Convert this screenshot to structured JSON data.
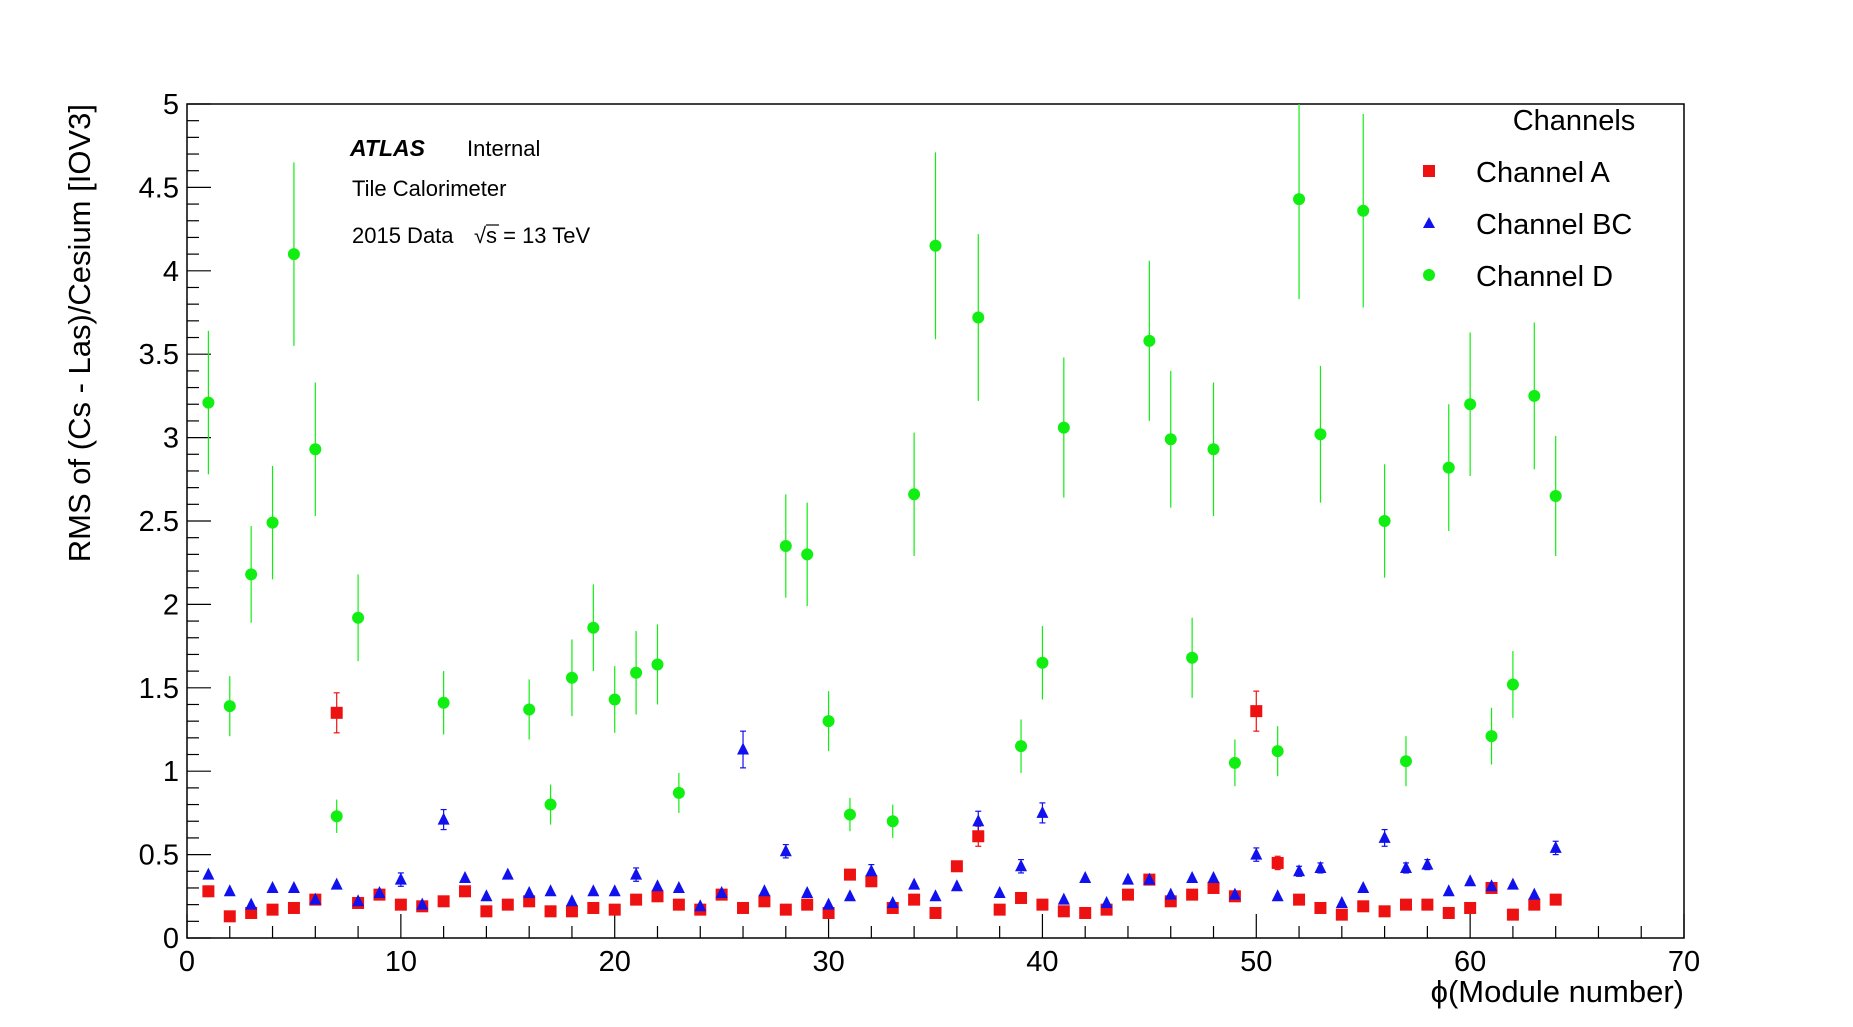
{
  "chart_data": {
    "type": "scatter",
    "xlabel": "ϕ(Module number)",
    "ylabel": "RMS of (Cs - Las)/Cesium  [IOV3]",
    "xlim": [
      0,
      70
    ],
    "ylim": [
      0,
      5
    ],
    "x_ticks": [
      "0",
      "10",
      "20",
      "30",
      "40",
      "50",
      "60",
      "70"
    ],
    "y_ticks": [
      "0",
      "0.5",
      "1",
      "1.5",
      "2",
      "2.5",
      "3",
      "3.5",
      "4",
      "4.5",
      "5"
    ],
    "grid": false,
    "legend_placement": "top-right",
    "legend_title": "Channels",
    "annotations": {
      "experiment": "ATLAS",
      "status": "Internal",
      "detector": "Tile Calorimeter",
      "data_prefix": "2015 Data",
      "sqrt_symbol": "√",
      "energy": "s = 13 TeV"
    },
    "series": [
      {
        "name": "Channel A",
        "color": "#ee1111",
        "marker": "square",
        "x": [
          1,
          2,
          3,
          4,
          5,
          6,
          7,
          8,
          9,
          10,
          11,
          12,
          13,
          14,
          15,
          16,
          17,
          18,
          19,
          20,
          21,
          22,
          23,
          24,
          25,
          26,
          27,
          28,
          29,
          30,
          31,
          32,
          33,
          34,
          35,
          36,
          37,
          38,
          39,
          40,
          41,
          42,
          43,
          44,
          45,
          46,
          47,
          48,
          49,
          50,
          51,
          52,
          53,
          54,
          55,
          56,
          57,
          58,
          59,
          60,
          61,
          62,
          63,
          64
        ],
        "y": [
          0.28,
          0.13,
          0.15,
          0.17,
          0.18,
          0.23,
          1.35,
          0.21,
          0.26,
          0.2,
          0.19,
          0.22,
          0.28,
          0.16,
          0.2,
          0.22,
          0.16,
          0.16,
          0.18,
          0.17,
          0.23,
          0.25,
          0.2,
          0.17,
          0.26,
          0.18,
          0.22,
          0.17,
          0.2,
          0.15,
          0.38,
          0.34,
          0.18,
          0.23,
          0.15,
          0.43,
          0.61,
          0.17,
          0.24,
          0.2,
          0.16,
          0.15,
          0.17,
          0.26,
          0.35,
          0.22,
          0.26,
          0.3,
          0.25,
          1.36,
          0.45,
          0.23,
          0.18,
          0.14,
          0.19,
          0.16,
          0.2,
          0.2,
          0.15,
          0.18,
          0.3,
          0.14,
          0.2,
          0.23
        ],
        "err": [
          0,
          0,
          0,
          0,
          0,
          0,
          0.12,
          0,
          0,
          0,
          0,
          0,
          0,
          0,
          0,
          0,
          0,
          0,
          0,
          0,
          0,
          0,
          0,
          0,
          0,
          0,
          0,
          0,
          0,
          0,
          0,
          0,
          0,
          0,
          0,
          0,
          0.06,
          0,
          0,
          0,
          0,
          0,
          0,
          0,
          0,
          0,
          0,
          0,
          0,
          0.12,
          0.04,
          0,
          0,
          0,
          0,
          0,
          0,
          0,
          0,
          0,
          0,
          0,
          0,
          0
        ]
      },
      {
        "name": "Channel BC",
        "color": "#1111ee",
        "marker": "triangle",
        "x": [
          1,
          2,
          3,
          4,
          5,
          6,
          7,
          8,
          9,
          10,
          11,
          12,
          13,
          14,
          15,
          16,
          17,
          18,
          19,
          20,
          21,
          22,
          23,
          24,
          25,
          26,
          27,
          28,
          29,
          30,
          31,
          32,
          33,
          34,
          35,
          36,
          37,
          38,
          39,
          40,
          41,
          42,
          43,
          44,
          45,
          46,
          47,
          48,
          49,
          50,
          51,
          52,
          53,
          54,
          55,
          56,
          57,
          58,
          59,
          60,
          61,
          62,
          63,
          64
        ],
        "y": [
          0.38,
          0.28,
          0.2,
          0.3,
          0.3,
          0.23,
          0.32,
          0.22,
          0.27,
          0.35,
          0.2,
          0.71,
          0.36,
          0.25,
          0.38,
          0.27,
          0.28,
          0.22,
          0.28,
          0.28,
          0.38,
          0.31,
          0.3,
          0.19,
          0.27,
          1.13,
          0.28,
          0.52,
          0.27,
          0.2,
          0.25,
          0.4,
          0.21,
          0.32,
          0.25,
          0.31,
          0.7,
          0.27,
          0.43,
          0.75,
          0.23,
          0.36,
          0.21,
          0.35,
          0.35,
          0.26,
          0.36,
          0.36,
          0.26,
          0.5,
          0.25,
          0.4,
          0.42,
          0.21,
          0.3,
          0.6,
          0.42,
          0.44,
          0.28,
          0.34,
          0.31,
          0.32,
          0.26,
          0.54
        ],
        "err": [
          0,
          0,
          0,
          0,
          0,
          0,
          0,
          0,
          0,
          0.04,
          0,
          0.06,
          0,
          0,
          0,
          0,
          0,
          0,
          0,
          0,
          0.04,
          0,
          0,
          0,
          0,
          0.11,
          0,
          0.04,
          0,
          0,
          0,
          0.04,
          0,
          0,
          0,
          0,
          0.06,
          0,
          0.04,
          0.06,
          0,
          0,
          0,
          0,
          0,
          0,
          0,
          0,
          0,
          0.04,
          0,
          0.03,
          0.03,
          0,
          0,
          0.05,
          0.03,
          0.03,
          0,
          0,
          0,
          0,
          0,
          0.04
        ]
      },
      {
        "name": "Channel D",
        "color": "#11ee11",
        "marker": "circle",
        "x": [
          1,
          2,
          3,
          4,
          5,
          6,
          7,
          8,
          12,
          16,
          17,
          18,
          19,
          20,
          21,
          22,
          23,
          28,
          29,
          30,
          31,
          33,
          34,
          35,
          37,
          39,
          40,
          41,
          45,
          46,
          47,
          48,
          49,
          51,
          52,
          53,
          55,
          56,
          57,
          59,
          60,
          61,
          62,
          63,
          64
        ],
        "y": [
          3.21,
          1.39,
          2.18,
          2.49,
          4.1,
          2.93,
          0.73,
          1.92,
          1.41,
          1.37,
          0.8,
          1.56,
          1.86,
          1.43,
          1.59,
          1.64,
          0.87,
          2.35,
          2.3,
          1.3,
          0.74,
          0.7,
          2.66,
          4.15,
          3.72,
          1.15,
          1.65,
          3.06,
          3.58,
          2.99,
          1.68,
          2.93,
          1.05,
          1.12,
          4.43,
          3.02,
          4.36,
          2.5,
          1.06,
          2.82,
          3.2,
          1.21,
          1.52,
          3.25,
          2.65
        ],
        "err": [
          0.43,
          0.18,
          0.29,
          0.34,
          0.55,
          0.4,
          0.1,
          0.26,
          0.19,
          0.18,
          0.12,
          0.23,
          0.26,
          0.2,
          0.25,
          0.24,
          0.12,
          0.31,
          0.31,
          0.18,
          0.1,
          0.1,
          0.37,
          0.56,
          0.5,
          0.16,
          0.22,
          0.42,
          0.48,
          0.41,
          0.24,
          0.4,
          0.14,
          0.15,
          0.6,
          0.41,
          0.58,
          0.34,
          0.15,
          0.38,
          0.43,
          0.17,
          0.2,
          0.44,
          0.36
        ]
      }
    ]
  }
}
